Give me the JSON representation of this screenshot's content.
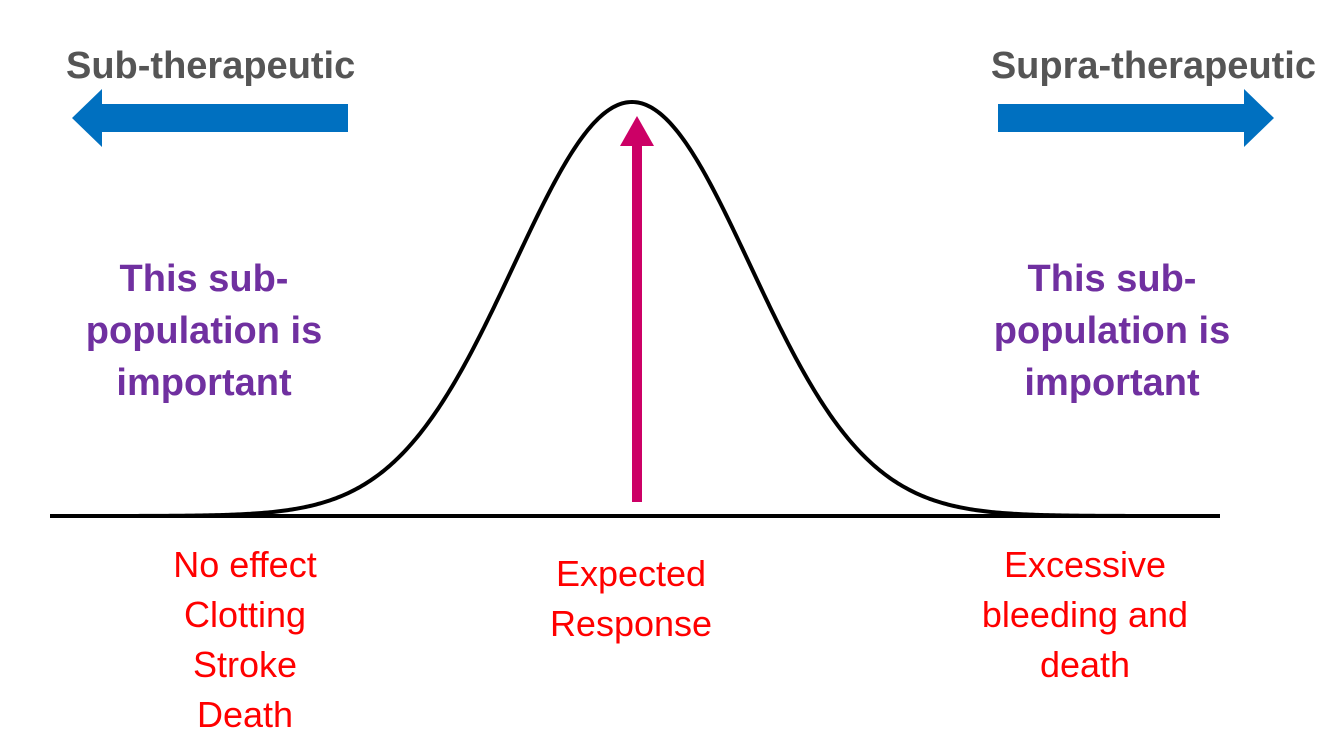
{
  "colors": {
    "heading": "#555555",
    "note": "#7030a0",
    "outcome": "#ff0000",
    "side_arrow": "#0070c0",
    "center_arrow": "#cc0066",
    "curve": "#000000"
  },
  "headings": {
    "left": "Sub-therapeutic",
    "right": "Supra-therapeutic"
  },
  "notes": {
    "left": "This sub-\npopulation is\nimportant",
    "right": "This sub-\npopulation is\nimportant"
  },
  "outcomes": {
    "left": "No effect\nClotting\nStroke\nDeath",
    "middle": "Expected\nResponse",
    "right": "Excessive\nbleeding and\ndeath"
  }
}
